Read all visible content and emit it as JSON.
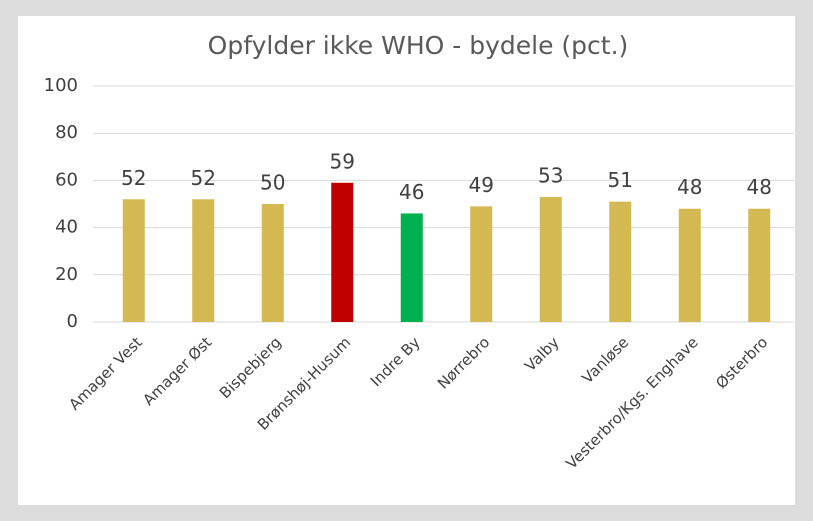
{
  "chart_data": {
    "type": "bar",
    "title": "Opfylder ikke WHO - bydele (pct.)",
    "categories": [
      "Amager Vest",
      "Amager Øst",
      "Bispebjerg",
      "Brønshøj-Husum",
      "Indre By",
      "Nørrebro",
      "Valby",
      "Vanløse",
      "Vesterbro/Kgs. Enghave",
      "Østerbro"
    ],
    "values": [
      52,
      52,
      50,
      59,
      46,
      49,
      53,
      51,
      48,
      48
    ],
    "colors": [
      "#d4b851",
      "#d4b851",
      "#d4b851",
      "#c00000",
      "#00b050",
      "#d4b851",
      "#d4b851",
      "#d4b851",
      "#d4b851",
      "#d4b851"
    ],
    "ylim": [
      0,
      100
    ],
    "yticks": [
      0,
      20,
      40,
      60,
      80,
      100
    ],
    "grid": true
  }
}
